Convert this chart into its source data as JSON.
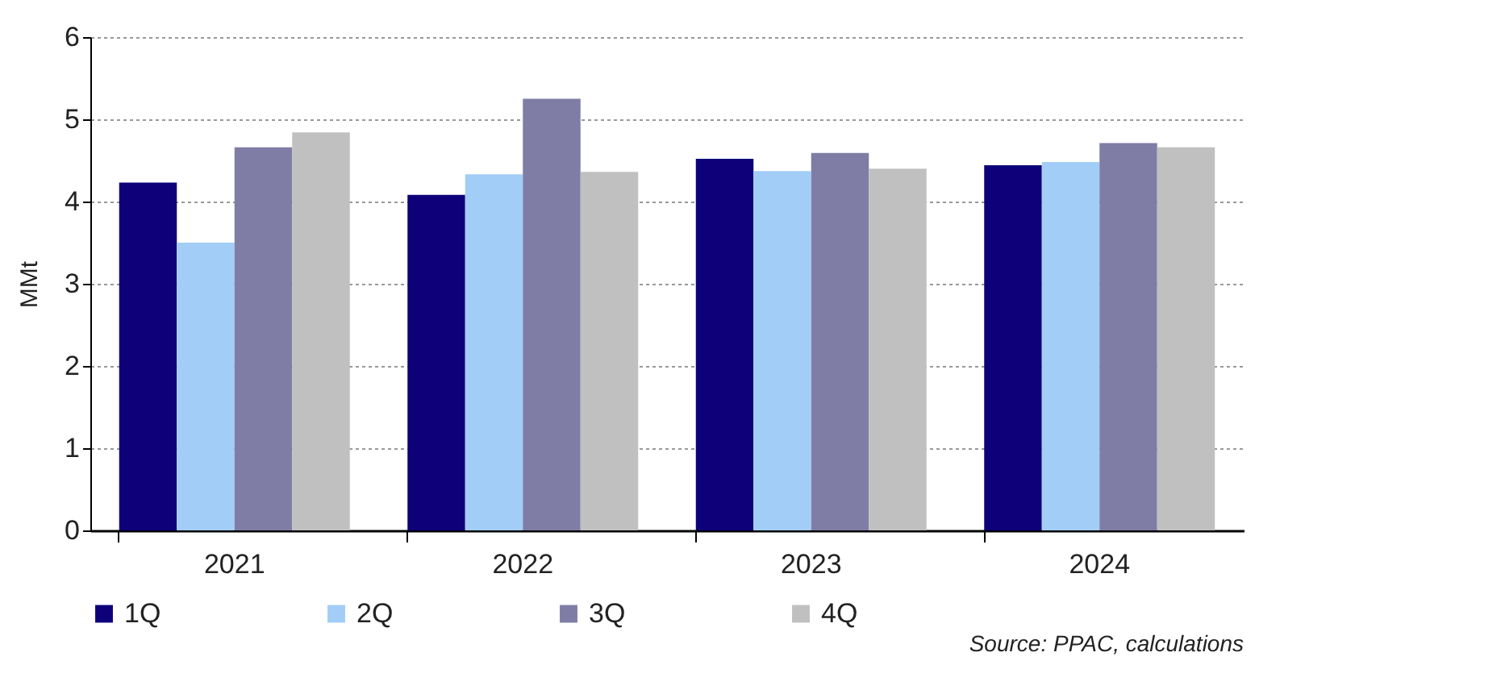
{
  "chart_data": {
    "type": "bar",
    "ylabel": "MMt",
    "categories": [
      "2021",
      "2022",
      "2023",
      "2024"
    ],
    "series": [
      {
        "name": "1Q",
        "color": "#0d0078",
        "values": [
          4.23,
          4.08,
          4.52,
          4.44
        ]
      },
      {
        "name": "2Q",
        "color": "#a2cdf7",
        "values": [
          3.5,
          4.33,
          4.37,
          4.48
        ]
      },
      {
        "name": "3Q",
        "color": "#7f7da6",
        "values": [
          4.66,
          5.25,
          4.59,
          4.71
        ]
      },
      {
        "name": "4Q",
        "color": "#c0c0c0",
        "values": [
          4.84,
          4.36,
          4.4,
          4.66
        ]
      }
    ],
    "ylim": [
      0,
      6
    ],
    "yticks": [
      0,
      1,
      2,
      3,
      4,
      5,
      6
    ],
    "grid": "y",
    "legend": "bottom",
    "annotations": [
      "Source: PPAC, calculations"
    ]
  }
}
